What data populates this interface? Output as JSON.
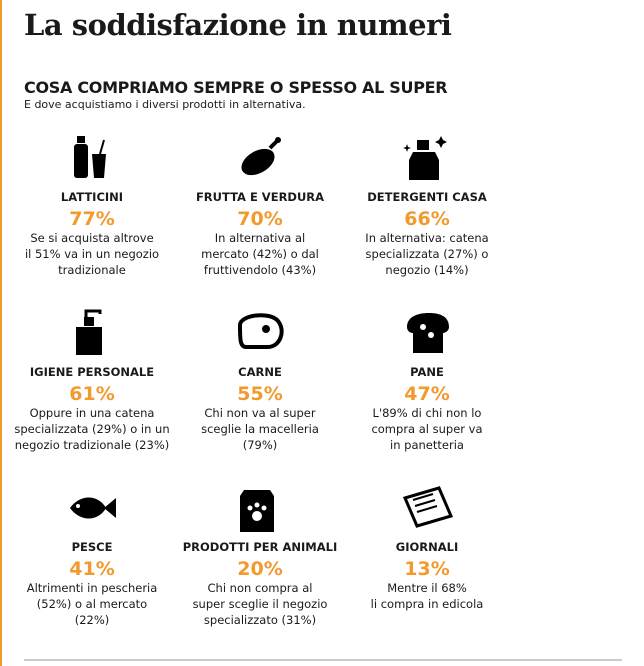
{
  "header": {
    "title": "La soddisfazione in numeri",
    "subtitle": "COSA COMPRIAMO SEMPRE O SPESSO AL SUPER",
    "description": "E dove acquistiamo i diversi prodotti in alternativa."
  },
  "items": [
    {
      "label": "LATTICINI",
      "percent": "77%",
      "lines": [
        "Se si acquista altrove",
        "il 51% va in un negozio",
        "tradizionale"
      ]
    },
    {
      "label": "FRUTTA E VERDURA",
      "percent": "70%",
      "lines": [
        "In alternativa al",
        "mercato (42%) o dal",
        "fruttivendolo (43%)"
      ]
    },
    {
      "label": "DETERGENTI CASA",
      "percent": "66%",
      "lines": [
        "In alternativa: catena",
        "specializzata (27%) o",
        "negozio (14%)"
      ]
    },
    {
      "label": "IGIENE PERSONALE",
      "percent": "61%",
      "lines": [
        "Oppure in una catena",
        "specializzata (29%) o in un",
        "negozio tradizionale (23%)"
      ]
    },
    {
      "label": "CARNE",
      "percent": "55%",
      "lines": [
        "Chi non va al super",
        "sceglie la macelleria",
        "(79%)"
      ]
    },
    {
      "label": "PANE",
      "percent": "47%",
      "lines": [
        "L'89% di chi non lo",
        "compra al super va",
        "in panetteria"
      ]
    },
    {
      "label": "PESCE",
      "percent": "41%",
      "lines": [
        "Altrimenti in pescheria",
        "(52%) o al mercato",
        "(22%)"
      ]
    },
    {
      "label": "PRODOTTI PER ANIMALI",
      "percent": "20%",
      "lines": [
        "Chi non compra al",
        "super sceglie il negozio",
        "specializzato (31%)"
      ]
    },
    {
      "label": "GIORNALI",
      "percent": "13%",
      "lines": [
        "Mentre il 68%",
        "li compra in edicola"
      ]
    }
  ]
}
